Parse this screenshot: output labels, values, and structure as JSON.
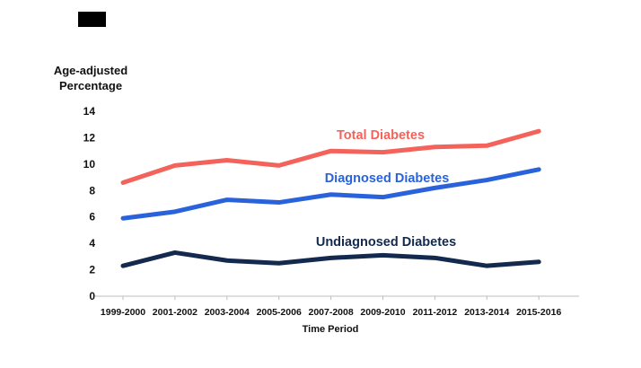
{
  "decor": {
    "top_left_block_color": "#000000"
  },
  "chart_data": {
    "type": "line",
    "title": "",
    "ylabel_lines": [
      "Age-adjusted",
      "Percentage"
    ],
    "ylabel": "Age-adjusted Percentage",
    "xlabel": "Time Period",
    "categories": [
      "1999-2000",
      "2001-2002",
      "2003-2004",
      "2005-2006",
      "2007-2008",
      "2009-2010",
      "2011-2012",
      "2013-2014",
      "2015-2016"
    ],
    "series": [
      {
        "name": "Total Diabetes",
        "color": "#f4635b",
        "values": [
          8.6,
          9.9,
          10.3,
          9.9,
          11.0,
          10.9,
          11.3,
          11.4,
          12.5
        ]
      },
      {
        "name": "Diagnosed Diabetes",
        "color": "#2a62dc",
        "values": [
          5.9,
          6.4,
          7.3,
          7.1,
          7.7,
          7.5,
          8.2,
          8.8,
          9.6
        ]
      },
      {
        "name": "Undiagnosed Diabetes",
        "color": "#13294e",
        "values": [
          2.3,
          3.3,
          2.7,
          2.5,
          2.9,
          3.1,
          2.9,
          2.3,
          2.6
        ]
      }
    ],
    "ylim": [
      0,
      14
    ],
    "yticks": [
      0,
      2,
      4,
      6,
      8,
      10,
      12,
      14
    ],
    "grid": false,
    "legend": "inline-labels",
    "axis_color": "#bdbdbd",
    "text_color": "#111111"
  }
}
